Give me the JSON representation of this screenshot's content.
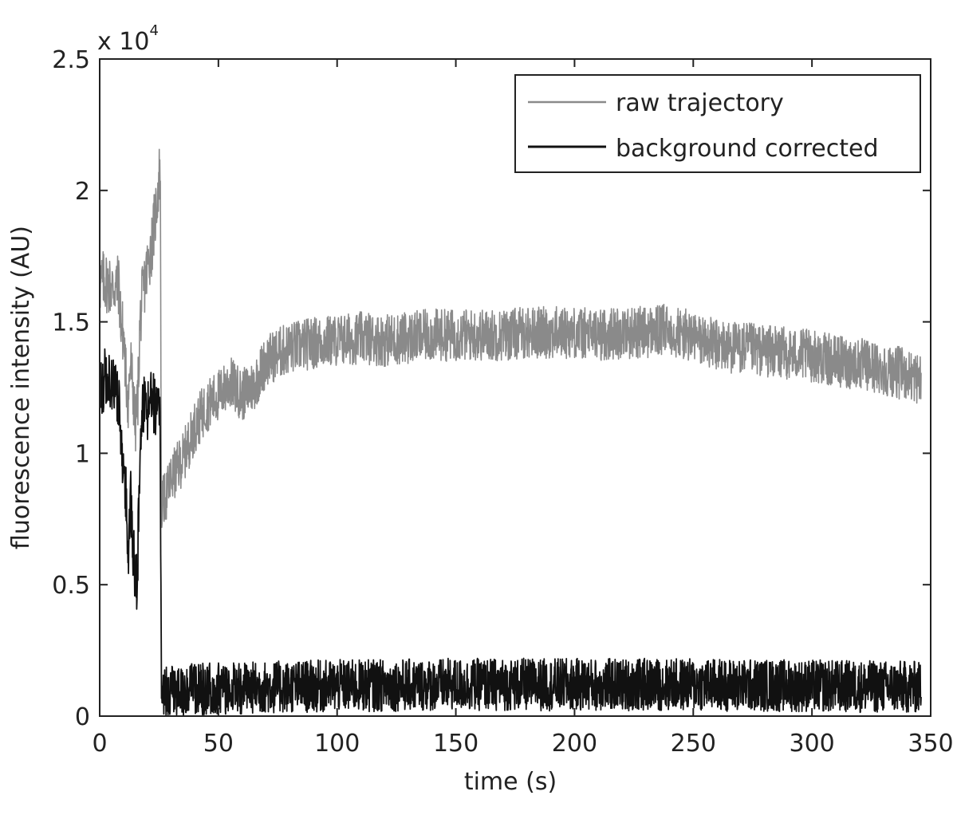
{
  "chart_data": {
    "type": "line",
    "xlabel": "time (s)",
    "ylabel": "fluorescence intensity (AU)",
    "y_multiplier": {
      "base": "x 10",
      "exponent": "4"
    },
    "xlim": [
      0,
      350
    ],
    "ylim": [
      0,
      25000
    ],
    "x_ticks": [
      0,
      50,
      100,
      150,
      200,
      250,
      300,
      350
    ],
    "x_tick_labels": [
      "0",
      "50",
      "100",
      "150",
      "200",
      "250",
      "300",
      "350"
    ],
    "y_ticks": [
      0,
      5000,
      10000,
      15000,
      20000,
      25000
    ],
    "y_tick_labels": [
      "0",
      "0.5",
      "1",
      "1.5",
      "2",
      "2.5"
    ],
    "grid": false,
    "legend_position": "top-right",
    "series": [
      {
        "name": "raw trajectory",
        "color": "#8a8a8a",
        "noise": 1000,
        "x": [
          0,
          2,
          5,
          8,
          9,
          10,
          11,
          12,
          13,
          14,
          15,
          16,
          17,
          18,
          20,
          22,
          24,
          25,
          25.5,
          26,
          28,
          30,
          32,
          35,
          38,
          40,
          45,
          50,
          55,
          60,
          65,
          70,
          75,
          80,
          90,
          100,
          110,
          120,
          130,
          140,
          150,
          160,
          170,
          180,
          190,
          200,
          210,
          220,
          230,
          240,
          250,
          260,
          270,
          280,
          290,
          300,
          310,
          320,
          330,
          340,
          346
        ],
        "y": [
          16400,
          16600,
          16300,
          16400,
          15000,
          14500,
          13000,
          12000,
          13500,
          12500,
          11000,
          12000,
          15000,
          16000,
          17000,
          18000,
          19500,
          20500,
          21000,
          8000,
          8400,
          9000,
          9300,
          9800,
          10500,
          11000,
          11800,
          12200,
          12700,
          12200,
          12600,
          13500,
          13800,
          14000,
          14200,
          14300,
          14400,
          14300,
          14400,
          14500,
          14500,
          14500,
          14500,
          14600,
          14600,
          14600,
          14500,
          14600,
          14600,
          14700,
          14400,
          14100,
          14000,
          13900,
          13800,
          13700,
          13500,
          13400,
          13200,
          13000,
          12800
        ]
      },
      {
        "name": "background corrected",
        "color": "#111111",
        "noise": 1000,
        "x": [
          0,
          2,
          5,
          8,
          9,
          10,
          11,
          12,
          13,
          14,
          15,
          15.5,
          16,
          17,
          18,
          19,
          20,
          22,
          24,
          25,
          25.5,
          26,
          30,
          50,
          100,
          150,
          200,
          250,
          300,
          346
        ],
        "y": [
          12500,
          12800,
          12600,
          12000,
          10500,
          9500,
          8500,
          6000,
          8500,
          6500,
          5500,
          5000,
          6000,
          10000,
          11500,
          12000,
          11500,
          12000,
          11800,
          11500,
          11000,
          800,
          950,
          1050,
          1150,
          1200,
          1200,
          1200,
          1150,
          1100
        ]
      }
    ]
  }
}
